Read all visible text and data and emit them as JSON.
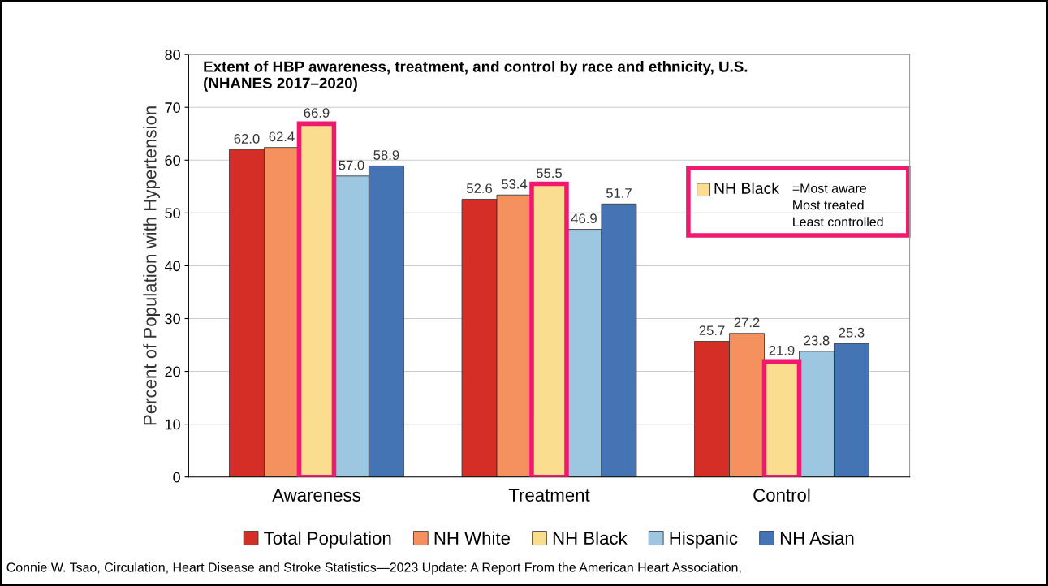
{
  "chart_data": {
    "type": "bar",
    "title": "Extent of HBP awareness, treatment, and control by race and ethnicity, U.S.\n(NHANES 2017–2020)",
    "ylabel": "Percent of Population with Hypertension",
    "categories": [
      "Awareness",
      "Treatment",
      "Control"
    ],
    "series": [
      {
        "name": "Total Population",
        "color": "#d52e26",
        "values": [
          62.0,
          52.6,
          25.7
        ],
        "value_labels": [
          "62.0",
          "52.6",
          "25.7"
        ]
      },
      {
        "name": "NH White",
        "color": "#f4915e",
        "values": [
          62.4,
          53.4,
          27.2
        ],
        "value_labels": [
          "62.4",
          "53.4",
          "27.2"
        ]
      },
      {
        "name": "NH Black",
        "color": "#fadd8e",
        "values": [
          66.9,
          55.5,
          21.9
        ],
        "value_labels": [
          "66.9",
          "55.5",
          "21.9"
        ]
      },
      {
        "name": "Hispanic",
        "color": "#9dc7e0",
        "values": [
          57.0,
          46.9,
          23.8
        ],
        "value_labels": [
          "57.0",
          "46.9",
          "23.8"
        ]
      },
      {
        "name": "NH Asian",
        "color": "#4574b4",
        "values": [
          58.9,
          51.7,
          25.3
        ],
        "value_labels": [
          "58.9",
          "51.7",
          "25.3"
        ]
      }
    ],
    "ylim": [
      0,
      80
    ],
    "yticks": [
      0,
      10,
      20,
      30,
      40,
      50,
      60,
      70,
      80
    ],
    "grid": "y",
    "legend": "bottom",
    "annotations": [
      "NH Black",
      "=Most aware\nMost treated\nLeast controlled",
      "Connie W. Tsao, Circulation, Heart Disease and Stroke Statistics—2023 Update: A Report From the American Heart Association,"
    ]
  }
}
